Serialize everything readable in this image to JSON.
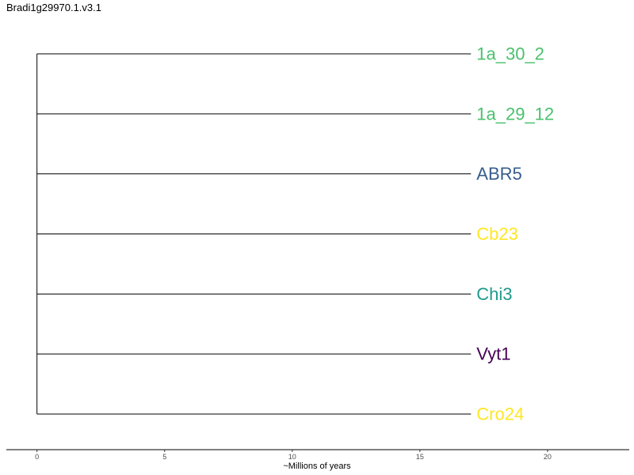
{
  "title": "Bradi1g29970.1.v3.1",
  "tree": {
    "root_x": 0,
    "tips": [
      {
        "label": "1a_30_2",
        "branch_length": 17,
        "color": "#4AC16D"
      },
      {
        "label": "1a_29_12",
        "branch_length": 17,
        "color": "#4AC16D"
      },
      {
        "label": "ABR5",
        "branch_length": 17,
        "color": "#365C8D"
      },
      {
        "label": "Cb23",
        "branch_length": 17,
        "color": "#FDE725"
      },
      {
        "label": "Chi3",
        "branch_length": 17,
        "color": "#1F9A8A"
      },
      {
        "label": "Vyt1",
        "branch_length": 17,
        "color": "#440154"
      },
      {
        "label": "Cro24",
        "branch_length": 17,
        "color": "#FDE725"
      }
    ]
  },
  "axis": {
    "label": "~Millions of years",
    "range": [
      -1.2,
      23.2
    ],
    "ticks": [
      0,
      5,
      10,
      15,
      20
    ]
  }
}
